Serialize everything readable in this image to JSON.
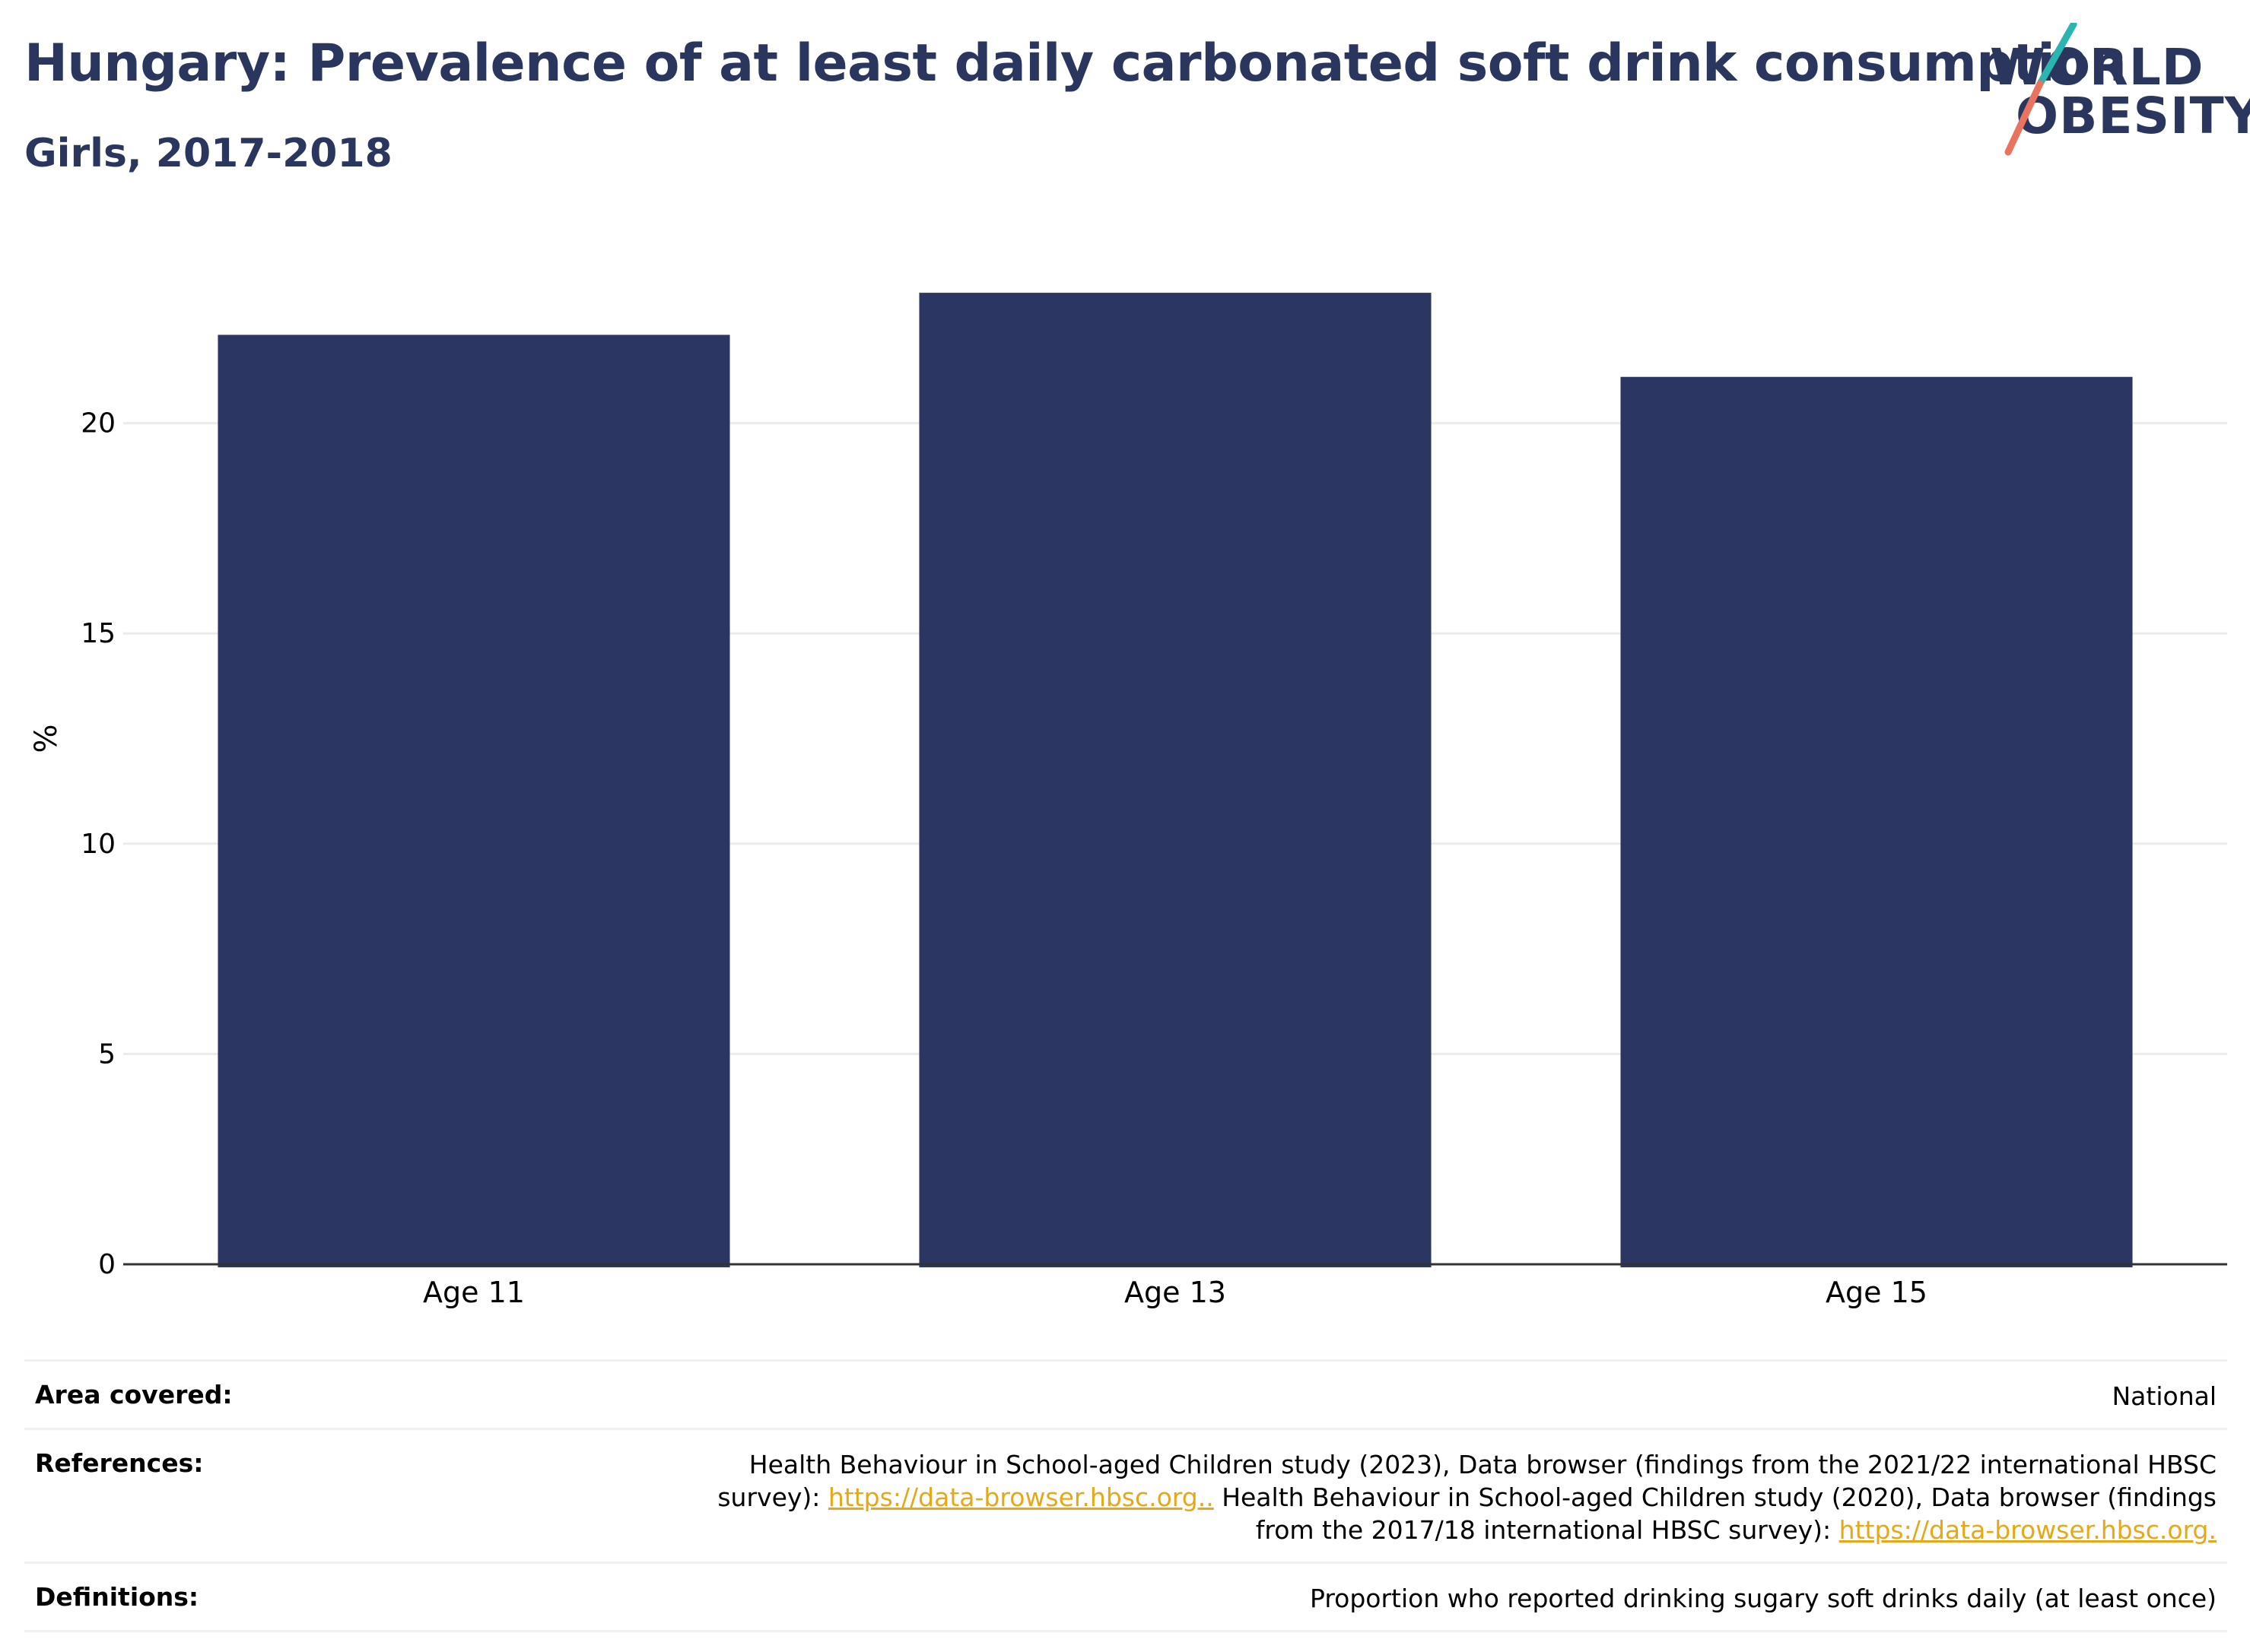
{
  "header": {
    "title": "Hungary: Prevalence of at least daily carbonated soft drink consumption",
    "subtitle": "Girls, 2017-2018"
  },
  "logo": {
    "line1": "WORLD",
    "line2": "OBESITY",
    "colors": {
      "text": "#2b365f",
      "slash_top": "#2bb5b0",
      "slash_bottom": "#e9735f"
    }
  },
  "chart_data": {
    "type": "bar",
    "title": "Hungary: Prevalence of at least daily carbonated soft drink consumption",
    "subtitle": "Girls, 2017-2018",
    "categories": [
      "Age 11",
      "Age 13",
      "Age 15"
    ],
    "series": [
      {
        "values": [
          22.1,
          23.1,
          21.1
        ],
        "color": "#2b3662"
      }
    ],
    "xlabel": "",
    "ylabel": "%",
    "ylim": [
      0,
      25
    ],
    "yticks": [
      0,
      5,
      10,
      15,
      20
    ],
    "grid": true,
    "legend": "none"
  },
  "info": {
    "rows": [
      {
        "label": "Area covered:",
        "parts": [
          {
            "text": "National"
          }
        ]
      },
      {
        "label": "References:",
        "parts": [
          {
            "text": "Health Behaviour in School-aged Children study (2023), Data browser (findings from the 2021/22 international HBSC survey): "
          },
          {
            "text": "https://data-browser.hbsc.org..",
            "link": true
          },
          {
            "text": " Health Behaviour in School-aged Children study (2020), Data browser (findings from the 2017/18 international HBSC survey): "
          },
          {
            "text": "https://data-browser.hbsc.org.",
            "link": true
          }
        ]
      },
      {
        "label": "Definitions:",
        "parts": [
          {
            "text": "Proportion who reported drinking sugary soft drinks daily (at least once)"
          }
        ]
      }
    ],
    "link_color": "#e6a817"
  }
}
